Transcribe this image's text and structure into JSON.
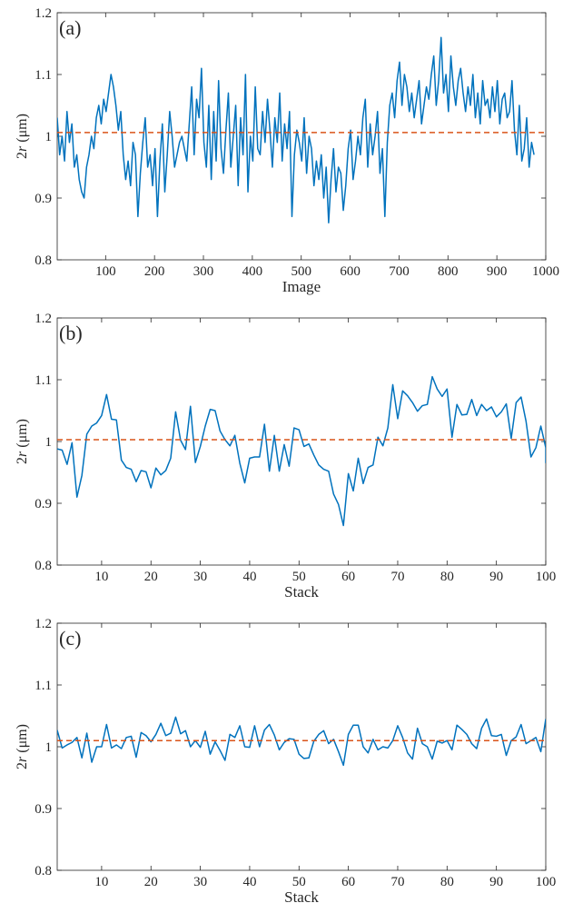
{
  "colors": {
    "series": "#0072BD",
    "reference": "#D95319",
    "axis": "#262626"
  },
  "chart_data": [
    {
      "type": "line",
      "panel_label": "(a)",
      "xlabel": "Image",
      "ylabel": "2r (μm)",
      "ylabel_main": "2",
      "ylabel_var": "r",
      "ylabel_unit": "(μm)",
      "xlim": [
        1,
        1000
      ],
      "ylim": [
        0.8,
        1.2
      ],
      "xticks": [
        100,
        200,
        300,
        400,
        500,
        600,
        700,
        800,
        900,
        1000
      ],
      "yticks": [
        0.8,
        0.9,
        1,
        1.1,
        1.2
      ],
      "ytick_labels": [
        "0.8",
        "0.9",
        "1",
        "1.1",
        "1.2"
      ],
      "reference_line": {
        "y": 1.006,
        "style": "dashed"
      },
      "series": [
        {
          "step": 5,
          "x0": 1,
          "values": [
            1.03,
            0.97,
            1.0,
            0.96,
            1.04,
            0.99,
            1.02,
            0.95,
            0.97,
            0.93,
            0.91,
            0.9,
            0.95,
            0.97,
            1.0,
            0.98,
            1.03,
            1.05,
            1.02,
            1.06,
            1.04,
            1.07,
            1.1,
            1.08,
            1.05,
            1.01,
            1.04,
            0.97,
            0.93,
            0.96,
            0.92,
            0.99,
            0.97,
            0.87,
            0.94,
            0.99,
            1.03,
            0.95,
            0.97,
            0.92,
            0.98,
            0.87,
            0.96,
            1.02,
            0.91,
            0.97,
            1.04,
            1.0,
            0.95,
            0.97,
            0.99,
            1.0,
            0.98,
            0.96,
            1.02,
            1.08,
            0.97,
            1.06,
            1.03,
            1.11,
            0.99,
            0.95,
            1.05,
            0.93,
            1.04,
            0.96,
            1.09,
            0.98,
            0.94,
            1.01,
            1.07,
            0.95,
            1.0,
            1.05,
            0.92,
            1.03,
            0.97,
            1.1,
            0.91,
            1.0,
            0.96,
            1.08,
            0.98,
            0.97,
            1.04,
            0.99,
            1.06,
            1.01,
            0.95,
            1.03,
            0.99,
            1.07,
            0.96,
            1.02,
            0.98,
            1.04,
            0.87,
            0.97,
            1.01,
            0.99,
            0.96,
            1.03,
            0.94,
            1.0,
            0.98,
            0.92,
            0.96,
            0.93,
            0.97,
            0.9,
            0.95,
            0.86,
            0.93,
            0.98,
            0.91,
            0.95,
            0.94,
            0.88,
            0.92,
            0.98,
            1.01,
            0.93,
            0.96,
            1.0,
            0.97,
            1.03,
            1.06,
            0.95,
            1.02,
            0.97,
            1.0,
            1.04,
            0.94,
            0.98,
            0.87,
            0.99,
            1.05,
            1.07,
            1.03,
            1.09,
            1.12,
            1.05,
            1.1,
            1.08,
            1.04,
            1.07,
            1.03,
            1.06,
            1.09,
            1.02,
            1.05,
            1.08,
            1.06,
            1.1,
            1.13,
            1.05,
            1.09,
            1.16,
            1.07,
            1.1,
            1.04,
            1.13,
            1.08,
            1.05,
            1.09,
            1.11,
            1.07,
            1.04,
            1.08,
            1.05,
            1.1,
            1.03,
            1.07,
            1.02,
            1.09,
            1.05,
            1.06,
            1.03,
            1.08,
            1.04,
            1.09,
            1.02,
            1.06,
            1.07,
            1.03,
            1.04,
            1.09,
            1.01,
            0.97,
            1.05,
            0.96,
            0.98,
            1.03,
            0.95,
            0.99,
            0.97
          ]
        }
      ]
    },
    {
      "type": "line",
      "panel_label": "(b)",
      "xlabel": "Stack",
      "ylabel": "2r (μm)",
      "ylabel_main": "2",
      "ylabel_var": "r",
      "ylabel_unit": "(μm)",
      "xlim": [
        1,
        100
      ],
      "ylim": [
        0.8,
        1.2
      ],
      "xticks": [
        10,
        20,
        30,
        40,
        50,
        60,
        70,
        80,
        90,
        100
      ],
      "yticks": [
        0.8,
        0.9,
        1,
        1.1,
        1.2
      ],
      "ytick_labels": [
        "0.8",
        "0.9",
        "1",
        "1.1",
        "1.2"
      ],
      "reference_line": {
        "y": 1.003,
        "style": "dashed"
      },
      "series": [
        {
          "step": 1,
          "x0": 1,
          "values": [
            0.988,
            0.986,
            0.963,
            0.998,
            0.91,
            0.945,
            1.012,
            1.025,
            1.03,
            1.042,
            1.076,
            1.036,
            1.035,
            0.97,
            0.958,
            0.955,
            0.935,
            0.953,
            0.951,
            0.925,
            0.957,
            0.946,
            0.953,
            0.973,
            1.048,
            1.002,
            0.987,
            1.057,
            0.966,
            0.992,
            1.025,
            1.052,
            1.05,
            1.017,
            1.003,
            0.993,
            1.01,
            0.965,
            0.933,
            0.973,
            0.975,
            0.975,
            1.028,
            0.952,
            1.01,
            0.952,
            0.995,
            0.96,
            1.022,
            1.019,
            0.992,
            0.996,
            0.978,
            0.962,
            0.955,
            0.952,
            0.915,
            0.898,
            0.864,
            0.948,
            0.92,
            0.973,
            0.932,
            0.958,
            0.962,
            1.007,
            0.993,
            1.022,
            1.092,
            1.037,
            1.082,
            1.074,
            1.063,
            1.049,
            1.058,
            1.06,
            1.105,
            1.085,
            1.073,
            1.085,
            1.007,
            1.06,
            1.043,
            1.044,
            1.068,
            1.042,
            1.06,
            1.05,
            1.056,
            1.04,
            1.048,
            1.061,
            1.005,
            1.063,
            1.072,
            1.033,
            0.975,
            0.99,
            1.025,
            0.99,
            0.965
          ]
        }
      ]
    },
    {
      "type": "line",
      "panel_label": "(c)",
      "xlabel": "Stack",
      "ylabel": "2r (μm)",
      "ylabel_main": "2",
      "ylabel_var": "r",
      "ylabel_unit": "(μm)",
      "xlim": [
        1,
        100
      ],
      "ylim": [
        0.8,
        1.2
      ],
      "xticks": [
        10,
        20,
        30,
        40,
        50,
        60,
        70,
        80,
        90,
        100
      ],
      "yticks": [
        0.8,
        0.9,
        1,
        1.1,
        1.2
      ],
      "ytick_labels": [
        "0.8",
        "0.9",
        "1",
        "1.1",
        "1.2"
      ],
      "reference_line": {
        "y": 1.01,
        "style": "dashed"
      },
      "series": [
        {
          "step": 1,
          "x0": 1,
          "values": [
            1.027,
            0.998,
            1.003,
            1.007,
            1.015,
            0.982,
            1.022,
            0.975,
            1.0,
            1.0,
            1.036,
            0.998,
            1.003,
            0.997,
            1.015,
            1.017,
            0.983,
            1.023,
            1.018,
            1.008,
            1.02,
            1.038,
            1.018,
            1.022,
            1.048,
            1.021,
            1.026,
            1.0,
            1.01,
            0.999,
            1.025,
            0.988,
            1.008,
            0.994,
            0.978,
            1.02,
            1.015,
            1.034,
            1.0,
            0.999,
            1.034,
            1.0,
            1.027,
            1.036,
            1.019,
            0.995,
            1.007,
            1.013,
            1.012,
            0.988,
            0.981,
            0.982,
            1.009,
            1.02,
            1.026,
            1.005,
            1.012,
            0.992,
            0.97,
            1.02,
            1.035,
            1.035,
            1.0,
            0.99,
            1.012,
            0.995,
            1.0,
            0.998,
            1.01,
            1.034,
            1.015,
            0.99,
            0.98,
            1.03,
            1.005,
            1.0,
            0.98,
            1.009,
            1.006,
            1.01,
            0.995,
            1.035,
            1.028,
            1.02,
            1.005,
            0.997,
            1.03,
            1.045,
            1.018,
            1.017,
            1.02,
            0.986,
            1.01,
            1.016,
            1.036,
            1.005,
            1.01,
            1.015,
            0.992,
            1.045
          ]
        }
      ]
    }
  ]
}
